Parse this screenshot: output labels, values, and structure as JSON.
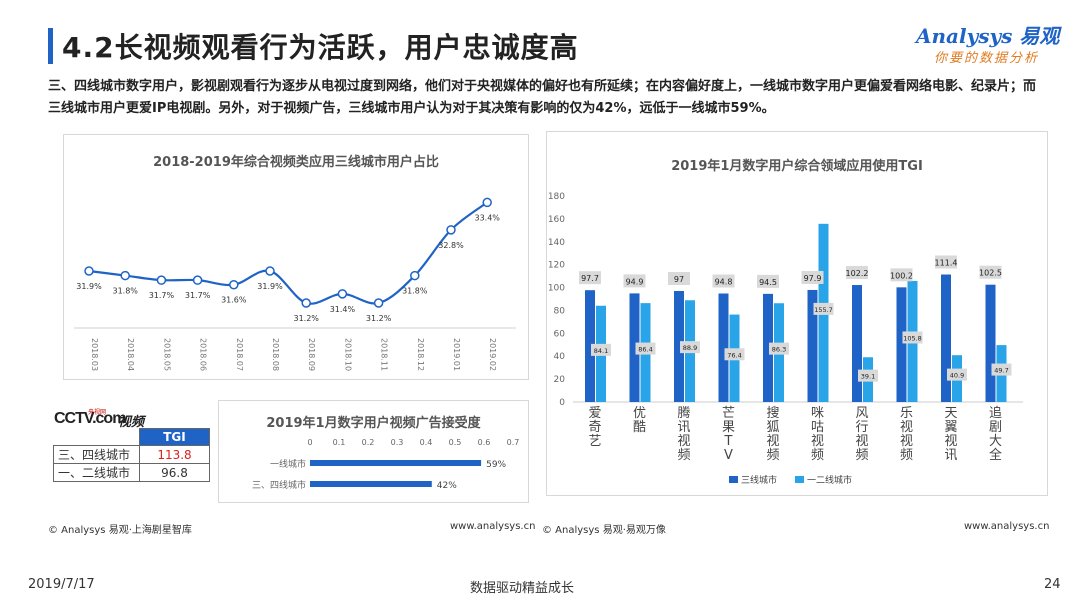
{
  "header": {
    "title": "4.2长视频观看行为活跃，用户忠诚度高",
    "logo_brand": "Analysys 易观",
    "logo_slogan": "你要的数据分析"
  },
  "intro_text": "三、四线城市数字用户，影视剧观看行为逐步从电视过度到网络，他们对于央视媒体的偏好也有所延续；在内容偏好度上，一线城市数字用户更偏爱看网络电影、纪录片；而三线城市用户更爱IP电视剧。另外，对于视频广告，三线城市用户认为对于其决策有影响的仅为42%，远低于一线城市59%。",
  "cctv": {
    "mark": "CCTV.com",
    "cn": "央视网",
    "suffix": "视频"
  },
  "tgi_table": {
    "header": "TGI",
    "rows": [
      {
        "city": "三、四线城市",
        "value": "113.8"
      },
      {
        "city": "一、二线城市",
        "value": "96.8"
      }
    ]
  },
  "footers": {
    "left_source": "© Analysys 易观·上海剧星智库",
    "left_url": "www.analysys.cn",
    "right_source": "© Analysys 易观·易观万像",
    "right_url": "www.analysys.cn"
  },
  "bottom": {
    "date": "2019/7/17",
    "slogan": "数据驱动精益成长",
    "page": "24"
  },
  "colors": {
    "accent": "#1f63c6",
    "series_dark": "#1f63c6",
    "series_light": "#2aa4e8",
    "label_bg": "#d9d9d9",
    "red": "#d9231c"
  },
  "chart_data": [
    {
      "type": "line",
      "title": "2018-2019年综合视频类应用三线城市用户占比",
      "categories": [
        "2018.03",
        "2018.04",
        "2018.05",
        "2018.06",
        "2018.07",
        "2018.08",
        "2018.09",
        "2018.10",
        "2018.11",
        "2018.12",
        "2019.01",
        "2019.02"
      ],
      "values": [
        31.9,
        31.8,
        31.7,
        31.7,
        31.6,
        31.9,
        31.2,
        31.4,
        31.2,
        31.8,
        32.8,
        33.4
      ],
      "labels": [
        "31.9%",
        "31.8%",
        "31.7%",
        "31.7%",
        "31.6%",
        "31.9%",
        "31.2%",
        "31.4%",
        "31.2%",
        "31.8%",
        "32.8%",
        "33.4%"
      ],
      "ylim": [
        30.5,
        34
      ]
    },
    {
      "type": "bar",
      "orientation": "horizontal",
      "title": "2019年1月数字用户视频广告接受度",
      "categories": [
        "一线城市",
        "三、四线城市"
      ],
      "values": [
        0.59,
        0.42
      ],
      "labels": [
        "59%",
        "42%"
      ],
      "xticks": [
        "0",
        "0.1",
        "0.2",
        "0.3",
        "0.4",
        "0.5",
        "0.6",
        "0.7"
      ],
      "xlim": [
        0,
        0.7
      ]
    },
    {
      "type": "bar",
      "title": "2019年1月数字用户综合领域应用使用TGI",
      "categories": [
        "爱奇艺",
        "优酷",
        "腾讯视频",
        "芒果TV",
        "搜狐视频",
        "咪咕视频",
        "风行视频",
        "乐视视频",
        "天翼视讯",
        "追剧大全"
      ],
      "series": [
        {
          "name": "三线城市",
          "values": [
            97.7,
            94.9,
            97,
            94.8,
            94.5,
            97.9,
            102.2,
            100.2,
            111.4,
            102.5
          ]
        },
        {
          "name": "一二线城市",
          "values": [
            84.1,
            86.4,
            88.9,
            76.4,
            86.3,
            155.7,
            39.1,
            105.8,
            40.9,
            49.7
          ]
        }
      ],
      "yticks": [
        "0",
        "20",
        "40",
        "60",
        "80",
        "100",
        "120",
        "140",
        "160",
        "180"
      ],
      "ylim": [
        0,
        180
      ],
      "legend": "bottom"
    }
  ]
}
